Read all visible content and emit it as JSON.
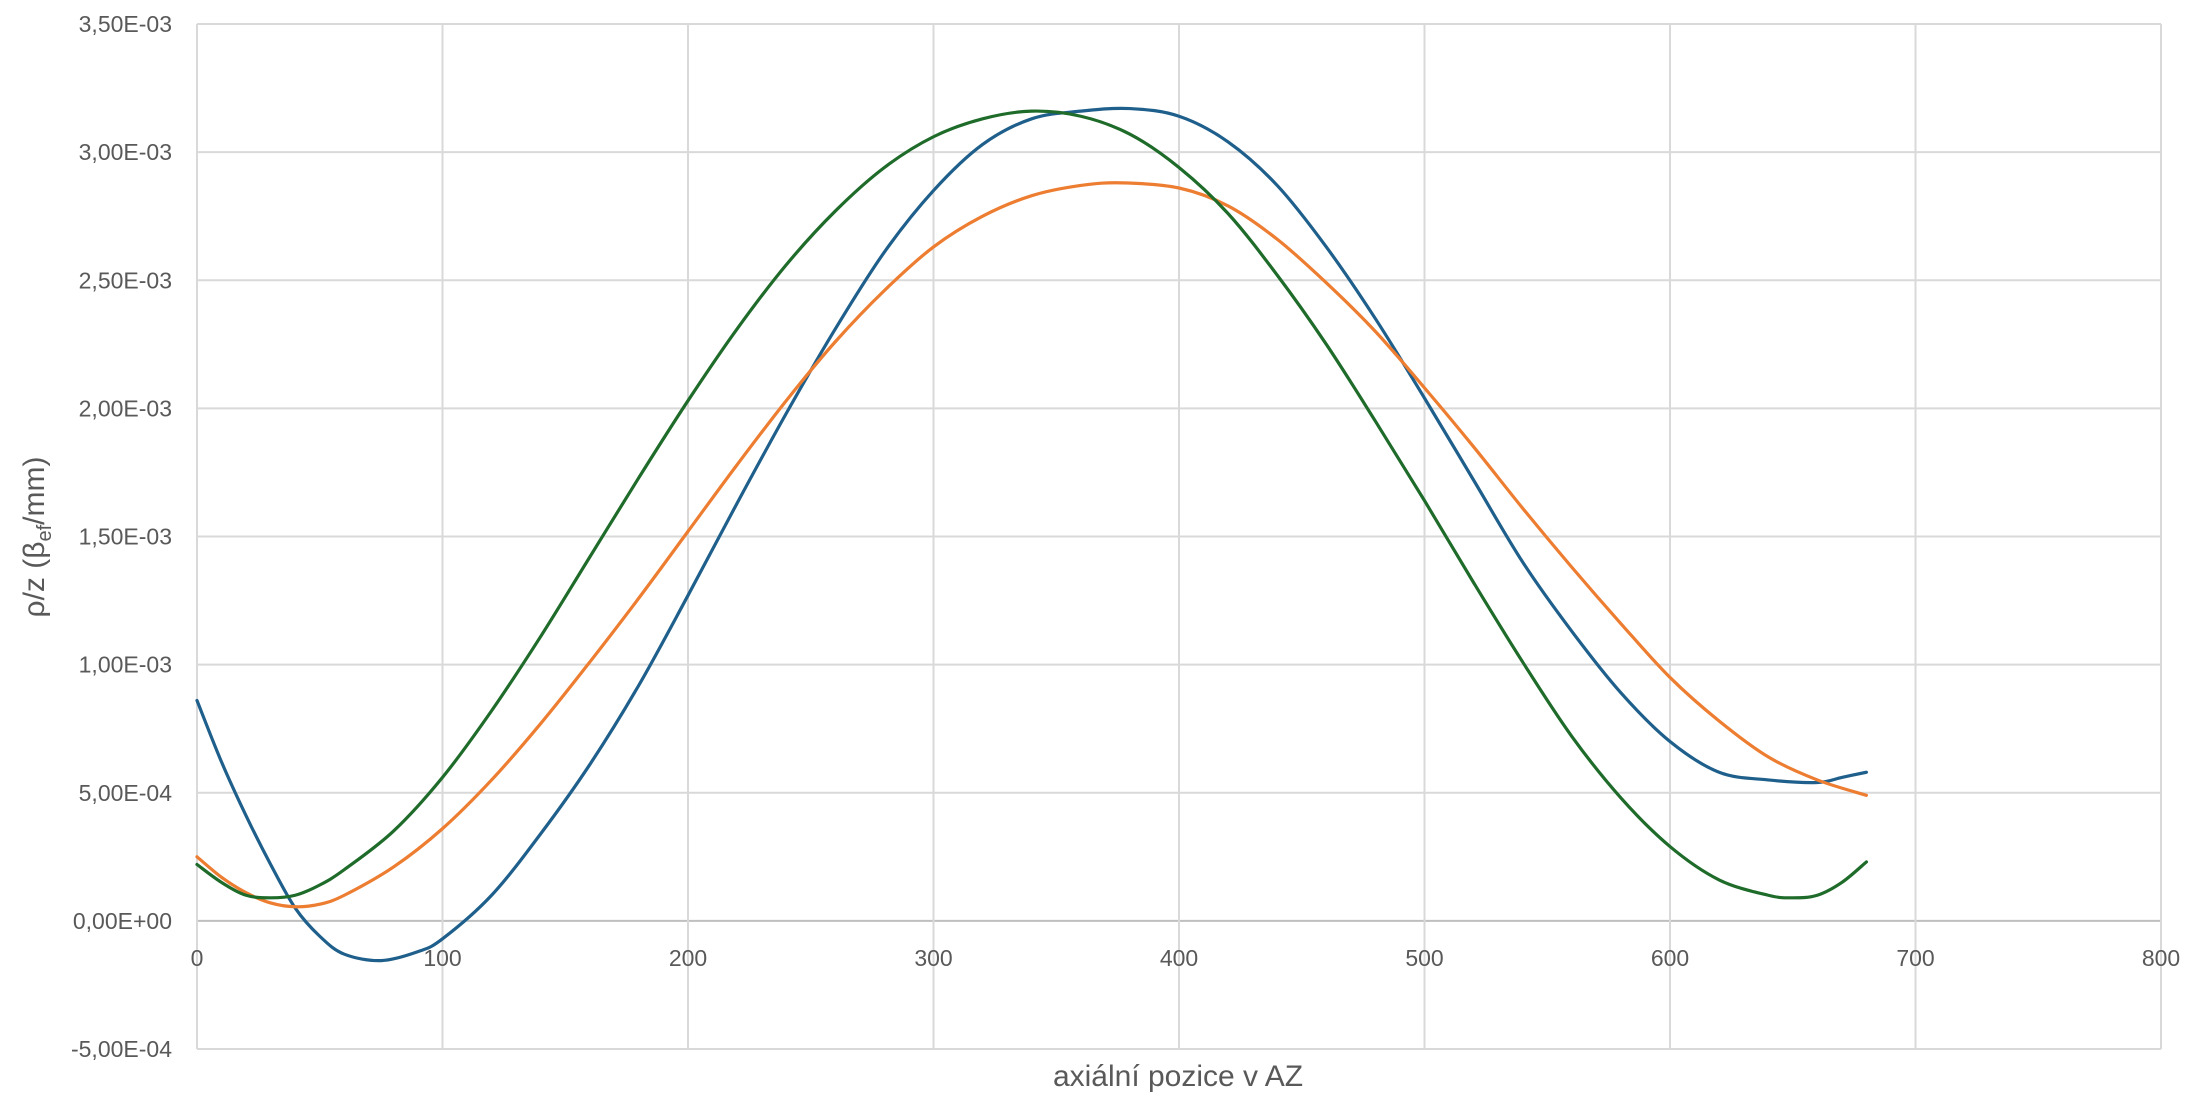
{
  "chart_data": {
    "type": "line",
    "title": "",
    "xlabel": "axiální pozice v AZ",
    "ylabel_main": "ρ/z (β",
    "ylabel_sub": "ef",
    "ylabel_tail": "/mm)",
    "xlim": [
      0,
      800
    ],
    "ylim": [
      -0.0005,
      0.0035
    ],
    "x_ticks": [
      0,
      100,
      200,
      300,
      400,
      500,
      600,
      700,
      800
    ],
    "x_tick_labels": [
      "0",
      "100",
      "200",
      "300",
      "400",
      "500",
      "600",
      "700",
      "800"
    ],
    "y_ticks": [
      -0.0005,
      0,
      0.0005,
      0.001,
      0.0015,
      0.002,
      0.0025,
      0.003,
      0.0035
    ],
    "y_tick_labels": [
      "-5,00E-04",
      "0,00E+00",
      "5,00E-04",
      "1,00E-03",
      "1,50E-03",
      "2,00E-03",
      "2,50E-03",
      "3,00E-03",
      "3,50E-03"
    ],
    "grid": true,
    "legend": "none",
    "series": [
      {
        "color": "#1f5f8b",
        "x": [
          0,
          10,
          20,
          30,
          40,
          50,
          60,
          75,
          90,
          100,
          120,
          140,
          160,
          180,
          200,
          220,
          240,
          260,
          280,
          300,
          320,
          340,
          360,
          380,
          400,
          420,
          440,
          460,
          480,
          500,
          520,
          540,
          560,
          580,
          600,
          620,
          640,
          660,
          670,
          680
        ],
        "y": [
          0.00086,
          0.00062,
          0.00041,
          0.00022,
          5e-05,
          -6e-05,
          -0.00013,
          -0.000155,
          -0.00012,
          -7e-05,
          0.0001,
          0.00034,
          0.00061,
          0.00092,
          0.00127,
          0.00163,
          0.00198,
          0.00231,
          0.00261,
          0.00285,
          0.00303,
          0.00313,
          0.00316,
          0.00317,
          0.00314,
          0.00304,
          0.00287,
          0.00263,
          0.00235,
          0.00204,
          0.00172,
          0.0014,
          0.00113,
          0.00089,
          0.0007,
          0.00058,
          0.00055,
          0.00054,
          0.00056,
          0.00058
        ]
      },
      {
        "color": "#ed7d31",
        "x": [
          0,
          10,
          20,
          30,
          40,
          50,
          60,
          80,
          100,
          120,
          140,
          160,
          180,
          200,
          220,
          240,
          260,
          280,
          300,
          320,
          340,
          360,
          377,
          400,
          420,
          440,
          460,
          480,
          500,
          520,
          540,
          560,
          580,
          600,
          620,
          640,
          660,
          680
        ],
        "y": [
          0.00025,
          0.00017,
          0.00011,
          7e-05,
          5.5e-05,
          6.5e-05,
          0.0001,
          0.00021,
          0.00036,
          0.00055,
          0.00077,
          0.00101,
          0.00126,
          0.00152,
          0.00178,
          0.00203,
          0.00226,
          0.00246,
          0.00263,
          0.00275,
          0.00283,
          0.00287,
          0.00288,
          0.00286,
          0.00279,
          0.00266,
          0.00249,
          0.0023,
          0.00208,
          0.00185,
          0.00161,
          0.00138,
          0.00116,
          0.00095,
          0.00078,
          0.00064,
          0.00055,
          0.00049
        ]
      },
      {
        "color": "#1e6b2a",
        "x": [
          0,
          10,
          20,
          30,
          40,
          50,
          60,
          80,
          100,
          120,
          140,
          160,
          180,
          200,
          220,
          240,
          260,
          280,
          300,
          320,
          340,
          360,
          380,
          400,
          420,
          440,
          460,
          480,
          500,
          520,
          540,
          560,
          580,
          600,
          620,
          640,
          650,
          660,
          670,
          680
        ],
        "y": [
          0.00022,
          0.00015,
          0.0001,
          9e-05,
          0.0001,
          0.00014,
          0.0002,
          0.00035,
          0.00056,
          0.00082,
          0.00111,
          0.00142,
          0.00173,
          0.00203,
          0.00231,
          0.00256,
          0.00277,
          0.00294,
          0.00306,
          0.00313,
          0.00316,
          0.00314,
          0.00307,
          0.00294,
          0.00276,
          0.00252,
          0.00225,
          0.00195,
          0.00164,
          0.00132,
          0.00101,
          0.00072,
          0.00048,
          0.00029,
          0.00016,
          0.0001,
          9e-05,
          0.0001,
          0.00015,
          0.00023
        ]
      }
    ]
  }
}
